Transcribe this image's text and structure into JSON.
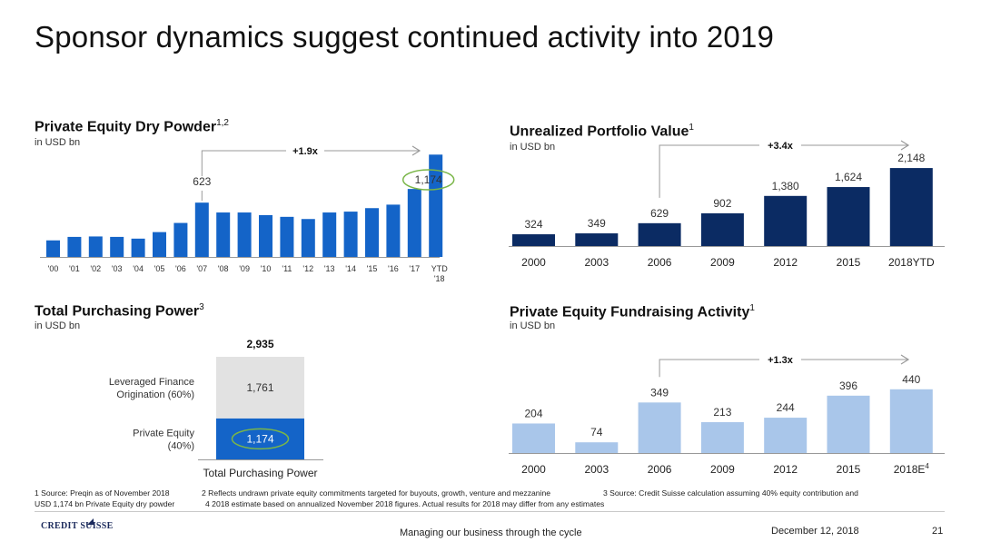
{
  "header": {
    "title": "Sponsor dynamics suggest continued activity into 2019"
  },
  "colors": {
    "navy": "#0b2b63",
    "blue": "#1464c8",
    "light_blue": "#a9c6ea",
    "grey": "#e2e2e2",
    "highlight": "#7ab648",
    "arrow": "#9a9a9a"
  },
  "chart_data": [
    {
      "type": "bar",
      "title": "Private Equity Dry Powder",
      "title_sup": "1,2",
      "subtitle": "in USD bn",
      "categories": [
        "'00",
        "'01",
        "'02",
        "'03",
        "'04",
        "'05",
        "'06",
        "'07",
        "'08",
        "'09",
        "'10",
        "'11",
        "'12",
        "'13",
        "'14",
        "'15",
        "'16",
        "'17",
        "YTD '18"
      ],
      "values": [
        190,
        230,
        235,
        230,
        210,
        285,
        390,
        623,
        510,
        510,
        480,
        460,
        435,
        510,
        520,
        560,
        600,
        780,
        1174
      ],
      "ylim": [
        0,
        1250
      ],
      "data_labels": [
        {
          "category": "'07",
          "text": "623"
        },
        {
          "category": "YTD '18",
          "text": "1,174",
          "highlight": true
        }
      ],
      "annotation": "+1.9x"
    },
    {
      "type": "bar",
      "title": "Unrealized Portfolio Value",
      "title_sup": "1",
      "subtitle": "in USD bn",
      "categories": [
        "2000",
        "2003",
        "2006",
        "2009",
        "2012",
        "2015",
        "2018YTD"
      ],
      "values": [
        324,
        349,
        629,
        902,
        1380,
        1624,
        2148
      ],
      "labels": [
        "324",
        "349",
        "629",
        "902",
        "1,380",
        "1,624",
        "2,148"
      ],
      "ylim": [
        0,
        2300
      ],
      "annotation": "+3.4x"
    },
    {
      "type": "bar",
      "title": "Total Purchasing Power",
      "title_sup": "3",
      "subtitle": "in USD bn",
      "stack_label": "Total Purchasing Power",
      "total_label": "2,935",
      "segments": [
        {
          "name": "Private Equity (40%)",
          "name_lines": [
            "Private Equity",
            "(40%)"
          ],
          "value": 1174,
          "label": "1,174",
          "highlight": true
        },
        {
          "name": "Leveraged Finance Origination (60%)",
          "name_lines": [
            "Leveraged Finance",
            "Origination (60%)"
          ],
          "value": 1761,
          "label": "1,761"
        }
      ]
    },
    {
      "type": "bar",
      "title": "Private Equity Fundraising Activity",
      "title_sup": "1",
      "subtitle": "in USD bn",
      "categories": [
        "2000",
        "2003",
        "2006",
        "2009",
        "2012",
        "2015",
        "2018E"
      ],
      "category_sups": [
        "",
        "",
        "",
        "",
        "",
        "",
        "4"
      ],
      "values": [
        204,
        74,
        349,
        213,
        244,
        396,
        440
      ],
      "labels": [
        "204",
        "74",
        "349",
        "213",
        "244",
        "396",
        "440"
      ],
      "ylim": [
        0,
        470
      ],
      "annotation": "+1.3x"
    }
  ],
  "footnotes": {
    "col1": [
      "1 Source: Preqin as of November 2018",
      "USD 1,174 bn Private Equity dry powder"
    ],
    "col2": "2 Reflects undrawn private equity commitments targeted for buyouts, growth, venture and mezzanine",
    "col3": "3 Source: Credit Suisse calculation assuming 40% equity contribution and",
    "col4": "4 2018 estimate based on annualized November 2018 figures. Actual results for 2018 may differ from any estimates"
  },
  "footer": {
    "logo": "CREDIT SUISSE",
    "center": "Managing our business through the cycle",
    "date": "December 12, 2018",
    "page": "21"
  }
}
